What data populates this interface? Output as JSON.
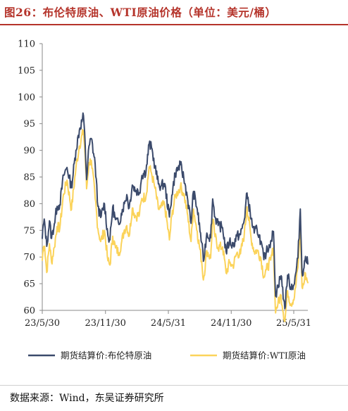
{
  "figure": {
    "title": "图26：布伦特原油、WTI原油价格（单位：美元/桶）",
    "source": "数据来源：Wind，东吴证券研究所"
  },
  "colors": {
    "title": "#b5342b",
    "brent": "#3b4a6b",
    "wti": "#fbd35a",
    "axis": "#8a8a8a"
  },
  "chart_data": {
    "type": "line",
    "title": "",
    "xlabel": "",
    "ylabel": "",
    "ylim": [
      60,
      110
    ],
    "yticks": [
      60,
      65,
      70,
      75,
      80,
      85,
      90,
      95,
      100,
      105,
      110
    ],
    "xlim": [
      "2023-05-30",
      "2025-07-11"
    ],
    "xticks": [
      {
        "date": "2023-05-30",
        "label": "23/5/30"
      },
      {
        "date": "2023-11-30",
        "label": "23/11/30"
      },
      {
        "date": "2024-05-31",
        "label": "24/5/31"
      },
      {
        "date": "2024-11-30",
        "label": "24/11/30"
      },
      {
        "date": "2025-05-31",
        "label": "25/5/31"
      }
    ],
    "grid": false,
    "legend_position": "bottom",
    "series": [
      {
        "name": "期货结算价:布伦特原油",
        "color_key": "brent",
        "points": [
          [
            "2023-05-30",
            73.5
          ],
          [
            "2023-06-02",
            76.0
          ],
          [
            "2023-06-06",
            76.5
          ],
          [
            "2023-06-12",
            72.0
          ],
          [
            "2023-06-20",
            76.8
          ],
          [
            "2023-06-26",
            73.5
          ],
          [
            "2023-07-04",
            76.2
          ],
          [
            "2023-07-12",
            79.5
          ],
          [
            "2023-07-20",
            79.8
          ],
          [
            "2023-07-31",
            85.3
          ],
          [
            "2023-08-10",
            86.8
          ],
          [
            "2023-08-23",
            83.0
          ],
          [
            "2023-09-05",
            90.0
          ],
          [
            "2023-09-15",
            93.8
          ],
          [
            "2023-09-27",
            96.5
          ],
          [
            "2023-10-02",
            90.8
          ],
          [
            "2023-10-06",
            84.5
          ],
          [
            "2023-10-13",
            90.8
          ],
          [
            "2023-10-20",
            92.2
          ],
          [
            "2023-10-31",
            87.4
          ],
          [
            "2023-11-08",
            79.5
          ],
          [
            "2023-11-16",
            77.4
          ],
          [
            "2023-11-27",
            80.0
          ],
          [
            "2023-12-07",
            74.0
          ],
          [
            "2023-12-13",
            73.2
          ],
          [
            "2023-12-21",
            79.4
          ],
          [
            "2023-12-29",
            77.0
          ],
          [
            "2024-01-08",
            76.1
          ],
          [
            "2024-01-15",
            78.2
          ],
          [
            "2024-01-24",
            80.0
          ],
          [
            "2024-01-31",
            81.7
          ],
          [
            "2024-02-07",
            79.2
          ],
          [
            "2024-02-16",
            83.5
          ],
          [
            "2024-02-26",
            82.5
          ],
          [
            "2024-03-08",
            82.1
          ],
          [
            "2024-03-15",
            85.3
          ],
          [
            "2024-03-27",
            86.1
          ],
          [
            "2024-04-05",
            91.2
          ],
          [
            "2024-04-12",
            90.5
          ],
          [
            "2024-04-22",
            87.0
          ],
          [
            "2024-05-02",
            83.7
          ],
          [
            "2024-05-09",
            83.3
          ],
          [
            "2024-05-20",
            83.8
          ],
          [
            "2024-06-03",
            77.5
          ],
          [
            "2024-06-10",
            81.6
          ],
          [
            "2024-06-20",
            85.7
          ],
          [
            "2024-07-05",
            87.3
          ],
          [
            "2024-07-15",
            84.8
          ],
          [
            "2024-07-25",
            81.4
          ],
          [
            "2024-08-05",
            76.3
          ],
          [
            "2024-08-12",
            82.3
          ],
          [
            "2024-08-23",
            79.0
          ],
          [
            "2024-09-05",
            72.7
          ],
          [
            "2024-09-10",
            69.2
          ],
          [
            "2024-09-20",
            74.5
          ],
          [
            "2024-10-01",
            73.6
          ],
          [
            "2024-10-07",
            80.9
          ],
          [
            "2024-10-14",
            77.5
          ],
          [
            "2024-10-23",
            75.9
          ],
          [
            "2024-11-05",
            75.5
          ],
          [
            "2024-11-15",
            71.0
          ],
          [
            "2024-11-25",
            73.0
          ],
          [
            "2024-12-05",
            72.1
          ],
          [
            "2024-12-16",
            73.9
          ],
          [
            "2024-12-27",
            74.2
          ],
          [
            "2025-01-07",
            77.0
          ],
          [
            "2025-01-15",
            82.0
          ],
          [
            "2025-01-27",
            77.1
          ],
          [
            "2025-02-05",
            74.5
          ],
          [
            "2025-02-13",
            75.3
          ],
          [
            "2025-02-24",
            73.0
          ],
          [
            "2025-03-05",
            69.5
          ],
          [
            "2025-03-12",
            70.9
          ],
          [
            "2025-03-25",
            73.0
          ],
          [
            "2025-04-02",
            74.8
          ],
          [
            "2025-04-07",
            64.2
          ],
          [
            "2025-04-09",
            62.8
          ],
          [
            "2025-04-15",
            64.7
          ],
          [
            "2025-04-24",
            66.5
          ],
          [
            "2025-05-05",
            60.3
          ],
          [
            "2025-05-13",
            66.6
          ],
          [
            "2025-05-22",
            64.4
          ],
          [
            "2025-06-02",
            65.0
          ],
          [
            "2025-06-12",
            69.8
          ],
          [
            "2025-06-19",
            79.0
          ],
          [
            "2025-06-24",
            67.1
          ],
          [
            "2025-06-30",
            68.0
          ],
          [
            "2025-07-04",
            70.1
          ],
          [
            "2025-07-11",
            68.7
          ]
        ]
      },
      {
        "name": "期货结算价:WTI原油",
        "color_key": "wti",
        "points": [
          [
            "2023-05-30",
            69.4
          ],
          [
            "2023-06-02",
            71.8
          ],
          [
            "2023-06-06",
            72.0
          ],
          [
            "2023-06-12",
            67.1
          ],
          [
            "2023-06-20",
            72.5
          ],
          [
            "2023-06-26",
            69.0
          ],
          [
            "2023-07-04",
            71.8
          ],
          [
            "2023-07-12",
            75.7
          ],
          [
            "2023-07-20",
            75.4
          ],
          [
            "2023-07-31",
            81.8
          ],
          [
            "2023-08-10",
            84.4
          ],
          [
            "2023-08-23",
            78.9
          ],
          [
            "2023-09-05",
            86.7
          ],
          [
            "2023-09-15",
            90.8
          ],
          [
            "2023-09-27",
            93.7
          ],
          [
            "2023-10-02",
            88.8
          ],
          [
            "2023-10-06",
            82.8
          ],
          [
            "2023-10-13",
            87.7
          ],
          [
            "2023-10-20",
            88.1
          ],
          [
            "2023-10-31",
            81.0
          ],
          [
            "2023-11-08",
            75.3
          ],
          [
            "2023-11-16",
            72.9
          ],
          [
            "2023-11-27",
            75.0
          ],
          [
            "2023-12-07",
            69.3
          ],
          [
            "2023-12-13",
            68.5
          ],
          [
            "2023-12-21",
            73.9
          ],
          [
            "2023-12-29",
            71.7
          ],
          [
            "2024-01-08",
            70.8
          ],
          [
            "2024-01-15",
            72.5
          ],
          [
            "2024-01-24",
            75.1
          ],
          [
            "2024-01-31",
            75.9
          ],
          [
            "2024-02-07",
            73.9
          ],
          [
            "2024-02-16",
            79.2
          ],
          [
            "2024-02-26",
            77.6
          ],
          [
            "2024-03-08",
            78.0
          ],
          [
            "2024-03-15",
            81.0
          ],
          [
            "2024-03-27",
            81.4
          ],
          [
            "2024-04-05",
            86.9
          ],
          [
            "2024-04-12",
            85.7
          ],
          [
            "2024-04-22",
            82.9
          ],
          [
            "2024-05-02",
            79.0
          ],
          [
            "2024-05-09",
            79.3
          ],
          [
            "2024-05-20",
            79.8
          ],
          [
            "2024-06-03",
            73.2
          ],
          [
            "2024-06-10",
            77.7
          ],
          [
            "2024-06-20",
            81.3
          ],
          [
            "2024-07-05",
            83.2
          ],
          [
            "2024-07-15",
            81.9
          ],
          [
            "2024-07-25",
            78.3
          ],
          [
            "2024-08-05",
            72.9
          ],
          [
            "2024-08-12",
            79.0
          ],
          [
            "2024-08-23",
            74.8
          ],
          [
            "2024-09-05",
            69.2
          ],
          [
            "2024-09-10",
            65.7
          ],
          [
            "2024-09-20",
            71.2
          ],
          [
            "2024-10-01",
            69.8
          ],
          [
            "2024-10-07",
            77.1
          ],
          [
            "2024-10-14",
            73.8
          ],
          [
            "2024-10-23",
            71.8
          ],
          [
            "2024-11-05",
            71.9
          ],
          [
            "2024-11-15",
            67.0
          ],
          [
            "2024-11-25",
            68.9
          ],
          [
            "2024-12-05",
            68.3
          ],
          [
            "2024-12-16",
            70.7
          ],
          [
            "2024-12-27",
            70.6
          ],
          [
            "2025-01-07",
            74.3
          ],
          [
            "2025-01-15",
            79.4
          ],
          [
            "2025-01-27",
            73.5
          ],
          [
            "2025-02-05",
            71.0
          ],
          [
            "2025-02-13",
            71.3
          ],
          [
            "2025-02-24",
            69.9
          ],
          [
            "2025-03-05",
            66.3
          ],
          [
            "2025-03-12",
            67.6
          ],
          [
            "2025-03-25",
            69.4
          ],
          [
            "2025-04-02",
            71.7
          ],
          [
            "2025-04-07",
            60.8
          ],
          [
            "2025-04-09",
            60.0
          ],
          [
            "2025-04-15",
            61.3
          ],
          [
            "2025-04-24",
            62.8
          ],
          [
            "2025-05-05",
            57.9
          ],
          [
            "2025-05-13",
            63.7
          ],
          [
            "2025-05-22",
            61.2
          ],
          [
            "2025-06-02",
            62.5
          ],
          [
            "2025-06-12",
            68.0
          ],
          [
            "2025-06-19",
            75.2
          ],
          [
            "2025-06-24",
            64.4
          ],
          [
            "2025-06-30",
            65.1
          ],
          [
            "2025-07-04",
            67.0
          ],
          [
            "2025-07-11",
            65.2
          ]
        ]
      }
    ]
  }
}
